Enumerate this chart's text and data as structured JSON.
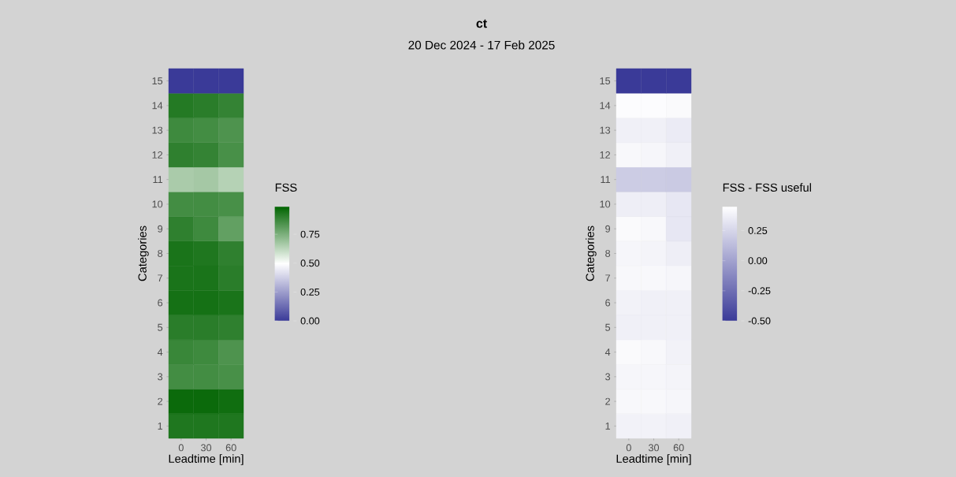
{
  "chart_data": [
    {
      "type": "other",
      "title": "ct",
      "subtitle": "20 Dec 2024 - 17 Feb 2025"
    },
    {
      "type": "heatmap",
      "xlabel": "Leadtime [min]",
      "ylabel": "Categories",
      "clabel": "FSS",
      "categories": [
        "0",
        "30",
        "60"
      ],
      "y_categories": [
        "15",
        "14",
        "13",
        "12",
        "11",
        "10",
        "9",
        "8",
        "7",
        "6",
        "5",
        "4",
        "3",
        "2",
        "1"
      ],
      "cells": [
        [
          0.0,
          0.0,
          0.0
        ],
        [
          0.92,
          0.91,
          0.89
        ],
        [
          0.87,
          0.86,
          0.84
        ],
        [
          0.9,
          0.89,
          0.85
        ],
        [
          0.66,
          0.67,
          0.64
        ],
        [
          0.86,
          0.86,
          0.85
        ],
        [
          0.9,
          0.87,
          0.8
        ],
        [
          0.94,
          0.93,
          0.9
        ],
        [
          0.94,
          0.94,
          0.91
        ],
        [
          0.95,
          0.95,
          0.94
        ],
        [
          0.91,
          0.91,
          0.9
        ],
        [
          0.88,
          0.87,
          0.84
        ],
        [
          0.86,
          0.86,
          0.85
        ],
        [
          0.97,
          0.97,
          0.96
        ],
        [
          0.93,
          0.93,
          0.93
        ]
      ],
      "colors": [
        "#3a3a98",
        "#ffffff",
        "#006400"
      ],
      "clim": [
        0,
        0.99
      ],
      "cticks": [
        {
          "value": 0,
          "label": "0.00"
        },
        {
          "value": 0.25,
          "label": "0.25"
        },
        {
          "value": 0.5,
          "label": "0.50"
        },
        {
          "value": 0.75,
          "label": "0.75"
        }
      ]
    },
    {
      "type": "heatmap",
      "xlabel": "Leadtime [min]",
      "ylabel": "Categories",
      "clabel": "FSS - FSS useful",
      "categories": [
        "0",
        "30",
        "60"
      ],
      "y_categories": [
        "15",
        "14",
        "13",
        "12",
        "11",
        "10",
        "9",
        "8",
        "7",
        "6",
        "5",
        "4",
        "3",
        "2",
        "1"
      ],
      "cells": [
        [
          -0.5,
          -0.5,
          -0.5
        ],
        [
          0.43,
          0.43,
          0.42
        ],
        [
          0.37,
          0.37,
          0.35
        ],
        [
          0.41,
          0.4,
          0.37
        ],
        [
          0.2,
          0.2,
          0.19
        ],
        [
          0.36,
          0.36,
          0.33
        ],
        [
          0.42,
          0.41,
          0.33
        ],
        [
          0.4,
          0.39,
          0.36
        ],
        [
          0.41,
          0.41,
          0.4
        ],
        [
          0.38,
          0.37,
          0.37
        ],
        [
          0.37,
          0.37,
          0.37
        ],
        [
          0.42,
          0.41,
          0.38
        ],
        [
          0.4,
          0.4,
          0.39
        ],
        [
          0.41,
          0.41,
          0.4
        ],
        [
          0.38,
          0.38,
          0.37
        ]
      ],
      "colors": [
        "#3a3a98",
        "#ffffff"
      ],
      "clim": [
        -0.5,
        0.45
      ],
      "cticks": [
        {
          "value": -0.5,
          "label": "-0.50"
        },
        {
          "value": -0.25,
          "label": "-0.25"
        },
        {
          "value": 0,
          "label": "0.00"
        },
        {
          "value": 0.25,
          "label": "0.25"
        }
      ]
    }
  ]
}
